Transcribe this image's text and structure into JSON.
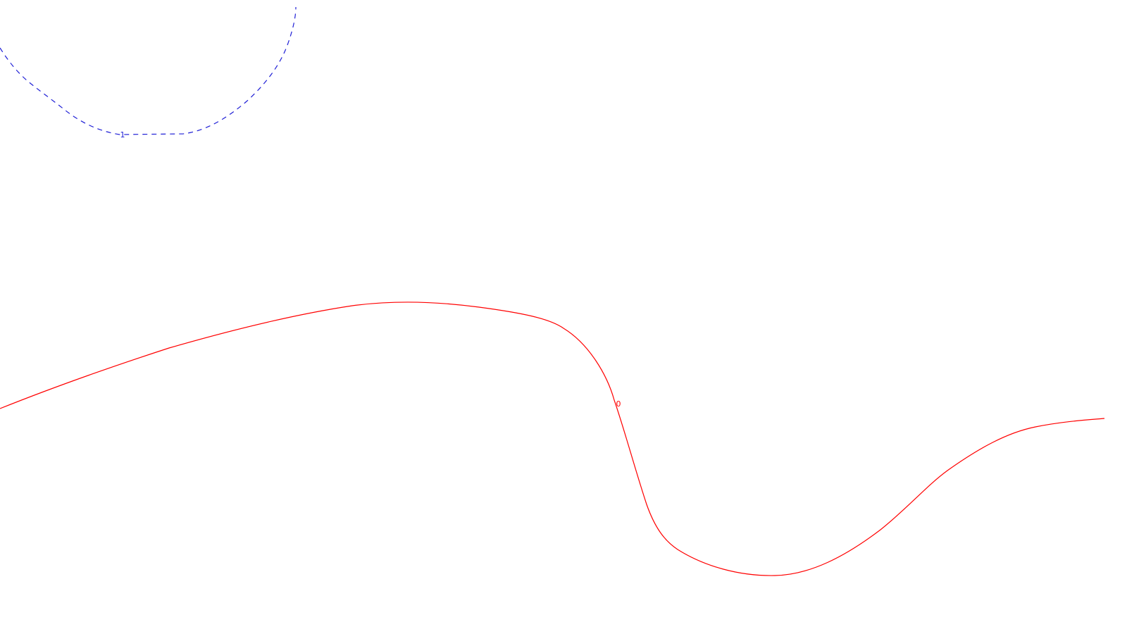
{
  "map": {
    "background_color": "#ffffff",
    "contours": [
      {
        "level_label": "1",
        "color": "#1f1fd6",
        "line_style": "dashed"
      },
      {
        "level_label": "0",
        "color": "#ff0000",
        "line_style": "solid"
      }
    ]
  }
}
